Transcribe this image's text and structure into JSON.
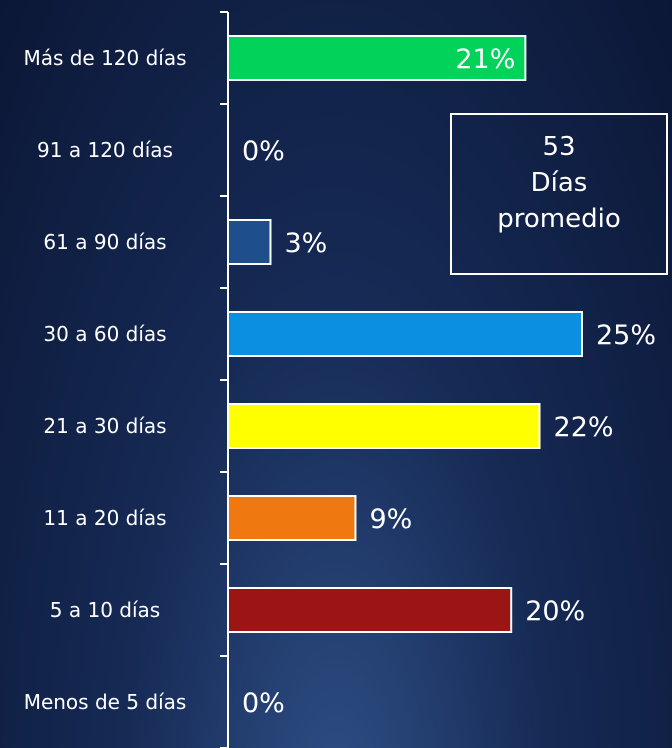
{
  "chart_data": {
    "type": "bar",
    "orientation": "horizontal",
    "categories": [
      "Más de 120 días",
      "91 a 120 días",
      "61 a 90 días",
      "30 a 60 días",
      "21 a 30 días",
      "11 a 20 días",
      "5 a 10 días",
      "Menos de 5 días"
    ],
    "values": [
      21,
      0,
      3,
      25,
      22,
      9,
      20,
      0
    ],
    "value_labels": [
      "21%",
      "0%",
      "3%",
      "25%",
      "22%",
      "9%",
      "20%",
      "0%"
    ],
    "colors": [
      "#00d25a",
      "#1f4e8c",
      "#1f4e8c",
      "#0b8fe0",
      "#ffff00",
      "#f07810",
      "#9b1515",
      "#1f4e8c"
    ],
    "annotation": {
      "value": 53,
      "label": "Días promedio"
    }
  }
}
